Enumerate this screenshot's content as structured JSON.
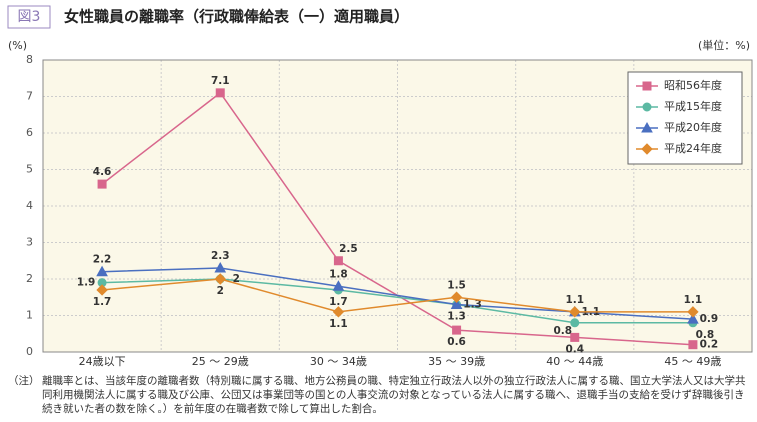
{
  "figure_label": "図3",
  "chart_data": {
    "type": "line",
    "title": "女性職員の離職率（行政職俸給表（一）適用職員）",
    "y_label": "(%)",
    "unit_label": "(単位：%)",
    "categories": [
      "24歳以下",
      "25 ～ 29歳",
      "30 ～ 34歳",
      "35 ～ 39歳",
      "40 ～ 44歳",
      "45 ～ 49歳"
    ],
    "series": [
      {
        "name": "昭和56年度",
        "color": "#d8668c",
        "marker": "square",
        "values": [
          4.6,
          7.1,
          2.5,
          0.6,
          0.4,
          0.2
        ]
      },
      {
        "name": "平成15年度",
        "color": "#5cb9a3",
        "marker": "circle",
        "values": [
          1.9,
          2.0,
          1.7,
          1.3,
          0.8,
          0.8
        ]
      },
      {
        "name": "平成20年度",
        "color": "#4a6fc0",
        "marker": "triangle",
        "values": [
          2.2,
          2.3,
          1.8,
          1.3,
          1.1,
          0.9
        ]
      },
      {
        "name": "平成24年度",
        "color": "#e08a2c",
        "marker": "diamond",
        "values": [
          1.7,
          2.0,
          1.1,
          1.5,
          1.1,
          1.1
        ]
      }
    ],
    "ylim": [
      0,
      8
    ],
    "yticks": [
      0,
      1,
      2,
      3,
      4,
      5,
      6,
      7,
      8
    ],
    "grid": true,
    "legend": "upper right"
  },
  "note": {
    "label": "（注）",
    "text": "離職率とは、当該年度の離職者数（特別職に属する職、地方公務員の職、特定独立行政法人以外の独立行政法人に属する職、国立大学法人又は大学共同利用機関法人に属する職及び公庫、公団又は事業団等の国との人事交流の対象となっている法人に属する職へ、退職手当の支給を受けず辞職後引き続き就いた者の数を除く。）を前年度の在職者数で除して算出した割合。"
  }
}
